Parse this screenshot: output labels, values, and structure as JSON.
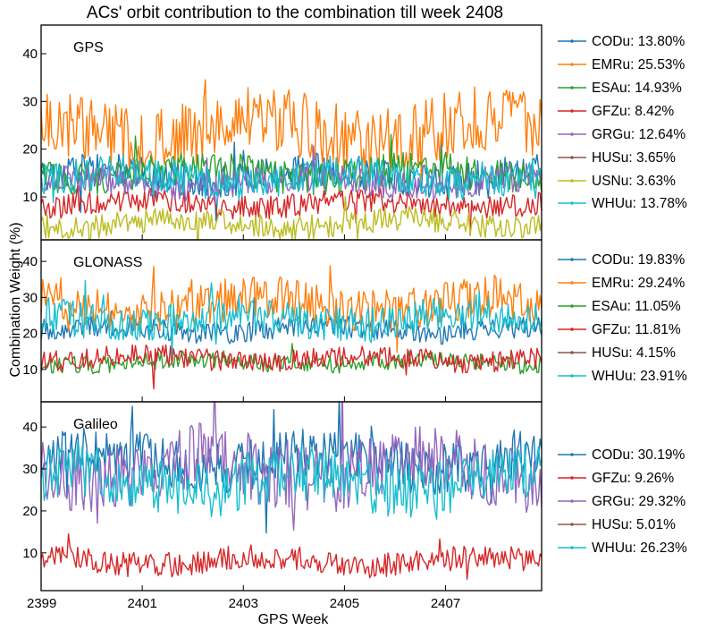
{
  "figure": {
    "title": "ACs' orbit contribution to the combination till week 2408",
    "xlabel": "GPS Week",
    "ylabel": "Combination Weight (%)"
  },
  "colors": {
    "CODu": "#1f77b4",
    "EMRu": "#ff7f0e",
    "ESAu": "#2ca02c",
    "GFZu": "#d62728",
    "GRGu": "#9467bd",
    "HUSu": "#8c564b",
    "USNu": "#bcbd22",
    "WHUu": "#17becf"
  },
  "chart_data": [
    {
      "type": "line",
      "panel_label": "GPS",
      "x_ticks": [
        "2399",
        "2401",
        "2403",
        "2405",
        "2407"
      ],
      "xlim": [
        2399,
        2408.9
      ],
      "ylim": [
        1,
        46
      ],
      "y_ticks": [
        10,
        20,
        30,
        40
      ],
      "legend": "outside-right",
      "series": [
        {
          "name": "CODu",
          "legend": "CODu: 13.80%",
          "level": 14.5,
          "amp": 3.5
        },
        {
          "name": "EMRu",
          "legend": "EMRu: 25.53%",
          "level": 24,
          "amp": 7
        },
        {
          "name": "ESAu",
          "legend": "ESAu: 14.93%",
          "level": 15,
          "amp": 3.5
        },
        {
          "name": "GFZu",
          "legend": "GFZu:  8.42%",
          "level": 8.5,
          "amp": 2.5
        },
        {
          "name": "GRGu",
          "legend": "GRGu: 12.64%",
          "level": 13,
          "amp": 3
        },
        {
          "name": "HUSu",
          "legend": "HUSu:  3.65%",
          "level": null,
          "amp": 0
        },
        {
          "name": "USNu",
          "legend": "USNu:  3.63%",
          "level": 4.5,
          "amp": 2.5
        },
        {
          "name": "WHUu",
          "legend": "WHUu: 13.78%",
          "level": 14,
          "amp": 3.5
        }
      ]
    },
    {
      "type": "line",
      "panel_label": "GLONASS",
      "x_ticks": [
        "2399",
        "2401",
        "2403",
        "2405",
        "2407"
      ],
      "xlim": [
        2399,
        2408.9
      ],
      "ylim": [
        1,
        46
      ],
      "y_ticks": [
        10,
        20,
        30,
        40
      ],
      "legend": "outside-right",
      "series": [
        {
          "name": "CODu",
          "legend": "CODu: 19.83%",
          "level": 21,
          "amp": 3
        },
        {
          "name": "EMRu",
          "legend": "EMRu: 29.24%",
          "level": 28,
          "amp": 6
        },
        {
          "name": "ESAu",
          "legend": "ESAu: 11.05%",
          "level": 12,
          "amp": 2.5
        },
        {
          "name": "GFZu",
          "legend": "GFZu: 11.81%",
          "level": 13,
          "amp": 3
        },
        {
          "name": "HUSu",
          "legend": "HUSu:  4.15%",
          "level": null,
          "amp": 0
        },
        {
          "name": "WHUu",
          "legend": "WHUu: 23.91%",
          "level": 24,
          "amp": 5
        }
      ]
    },
    {
      "type": "line",
      "panel_label": "Galileo",
      "x_ticks": [
        "2399",
        "2401",
        "2403",
        "2405",
        "2407"
      ],
      "xlim": [
        2399,
        2408.9
      ],
      "ylim": [
        1,
        46
      ],
      "y_ticks": [
        10,
        20,
        30,
        40
      ],
      "legend": "outside-right",
      "series": [
        {
          "name": "CODu",
          "legend": "CODu: 30.19%",
          "level": 32,
          "amp": 6
        },
        {
          "name": "GFZu",
          "legend": "GFZu:  9.26%",
          "level": 8,
          "amp": 3
        },
        {
          "name": "GRGu",
          "legend": "GRGu: 29.32%",
          "level": 30,
          "amp": 8
        },
        {
          "name": "HUSu",
          "legend": "HUSu:  5.01%",
          "level": null,
          "amp": 0
        },
        {
          "name": "WHUu",
          "legend": "WHUu: 26.23%",
          "level": 27,
          "amp": 7
        }
      ]
    }
  ]
}
